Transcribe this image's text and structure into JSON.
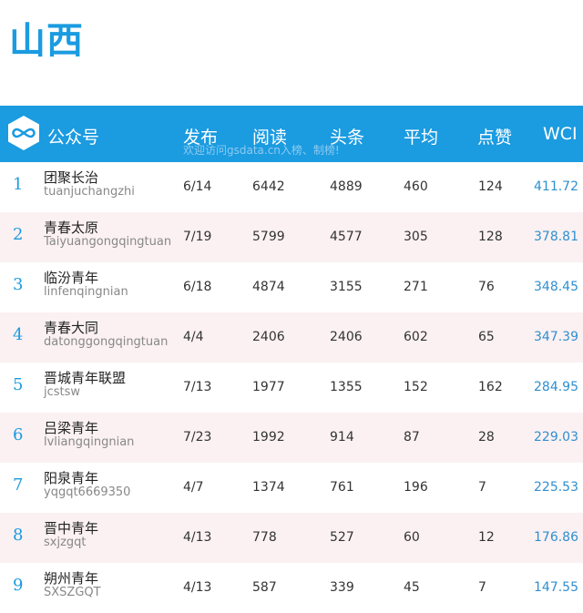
{
  "title": "山西",
  "header": {
    "account_label": "公众号",
    "publish_label": "发布",
    "read_label": "阅读",
    "headline_label": "头条",
    "average_label": "平均",
    "likes_label": "点赞",
    "wci_label": "WCI",
    "note": "欢迎访问gsdata.cn入榜、制榜!",
    "logo_icon": "infinity-logo-icon"
  },
  "colors": {
    "accent": "#1b9be0",
    "alt_row": "#fbf1f2",
    "wci_text": "#2f8fd0"
  },
  "rows": [
    {
      "rank": "1",
      "name": "团聚长治",
      "account": "tuanjuchangzhi",
      "publish": "6/14",
      "reads": "6442",
      "headline": "4889",
      "average": "460",
      "likes": "124",
      "wci": "411.72"
    },
    {
      "rank": "2",
      "name": "青春太原",
      "account": "Taiyuangongqingtuan",
      "publish": "7/19",
      "reads": "5799",
      "headline": "4577",
      "average": "305",
      "likes": "128",
      "wci": "378.81"
    },
    {
      "rank": "3",
      "name": "临汾青年",
      "account": "linfenqingnian",
      "publish": "6/18",
      "reads": "4874",
      "headline": "3155",
      "average": "271",
      "likes": "76",
      "wci": "348.45"
    },
    {
      "rank": "4",
      "name": "青春大同",
      "account": "datonggongqingtuan",
      "publish": "4/4",
      "reads": "2406",
      "headline": "2406",
      "average": "602",
      "likes": "65",
      "wci": "347.39"
    },
    {
      "rank": "5",
      "name": "晋城青年联盟",
      "account": "jcstsw",
      "publish": "7/13",
      "reads": "1977",
      "headline": "1355",
      "average": "152",
      "likes": "162",
      "wci": "284.95"
    },
    {
      "rank": "6",
      "name": "吕梁青年",
      "account": "lvliangqingnian",
      "publish": "7/23",
      "reads": "1992",
      "headline": "914",
      "average": "87",
      "likes": "28",
      "wci": "229.03"
    },
    {
      "rank": "7",
      "name": "阳泉青年",
      "account": "yqgqt6669350",
      "publish": "4/7",
      "reads": "1374",
      "headline": "761",
      "average": "196",
      "likes": "7",
      "wci": "225.53"
    },
    {
      "rank": "8",
      "name": "晋中青年",
      "account": "sxjzgqt",
      "publish": "4/13",
      "reads": "778",
      "headline": "527",
      "average": "60",
      "likes": "12",
      "wci": "176.86"
    },
    {
      "rank": "9",
      "name": "朔州青年",
      "account": "SXSZGQT",
      "publish": "4/13",
      "reads": "587",
      "headline": "339",
      "average": "45",
      "likes": "7",
      "wci": "147.55"
    }
  ]
}
